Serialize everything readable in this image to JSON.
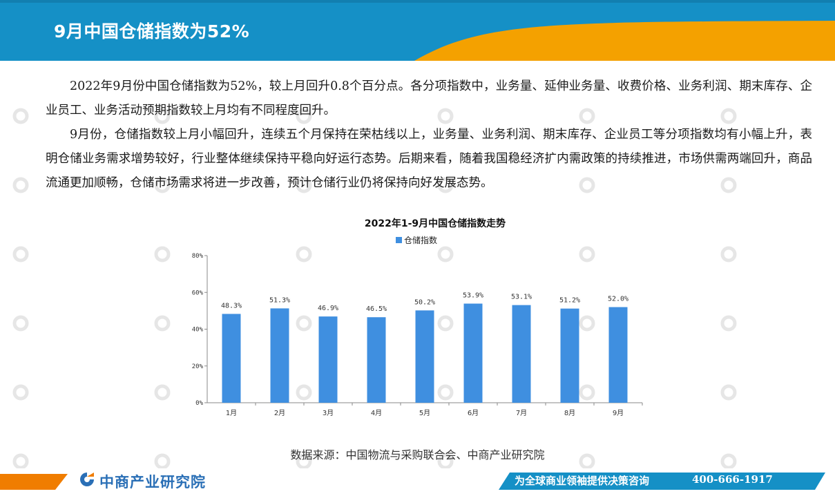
{
  "header": {
    "title": "9月中国仓储指数为52%",
    "colors": {
      "blue": "#1590c6",
      "orange": "#f4a100"
    }
  },
  "body": {
    "paragraphs": [
      "2022年9月份中国仓储指数为52%，较上月回升0.8个百分点。各分项指数中，业务量、延伸业务量、收费价格、业务利润、期末库存、企业员工、业务活动预期指数较上月均有不同程度回升。",
      "9月份，仓储指数较上月小幅回升，连续五个月保持在荣枯线以上，业务量、业务利润、期末库存、企业员工等分项指数均有小幅上升，表明仓储业务需求增势较好，行业整体继续保持平稳向好运行态势。后期来看，随着我国稳经济扩内需政策的持续推进，市场供需两端回升，商品流通更加顺畅，仓储市场需求将进一步改善，预计仓储行业仍将保持向好发展态势。"
    ]
  },
  "chart_data": {
    "type": "bar",
    "title": "2022年1-9月中国仓储指数走势",
    "categories": [
      "1月",
      "2月",
      "3月",
      "4月",
      "5月",
      "6月",
      "7月",
      "8月",
      "9月"
    ],
    "series": [
      {
        "name": "仓储指数",
        "values": [
          48.3,
          51.3,
          46.9,
          46.5,
          50.2,
          53.9,
          53.1,
          51.2,
          52.0
        ],
        "labels": [
          "48.3%",
          "51.3%",
          "46.9%",
          "46.5%",
          "50.2%",
          "53.9%",
          "53.1%",
          "51.2%",
          "52.0%"
        ],
        "color": "#3f8fe0"
      }
    ],
    "yticks": [
      "0%",
      "20%",
      "40%",
      "60%",
      "80%"
    ],
    "ylim": [
      0,
      80
    ],
    "legend": "top",
    "grid": false
  },
  "source": "数据来源：中国物流与采购联合会、中商产业研究院",
  "footer": {
    "brand": "中商产业研究院",
    "slogan": "为全球商业领袖提供决策咨询",
    "phone": "400-666-1917",
    "colors": {
      "blue": "#1590c6",
      "orange": "#f07d00"
    }
  }
}
